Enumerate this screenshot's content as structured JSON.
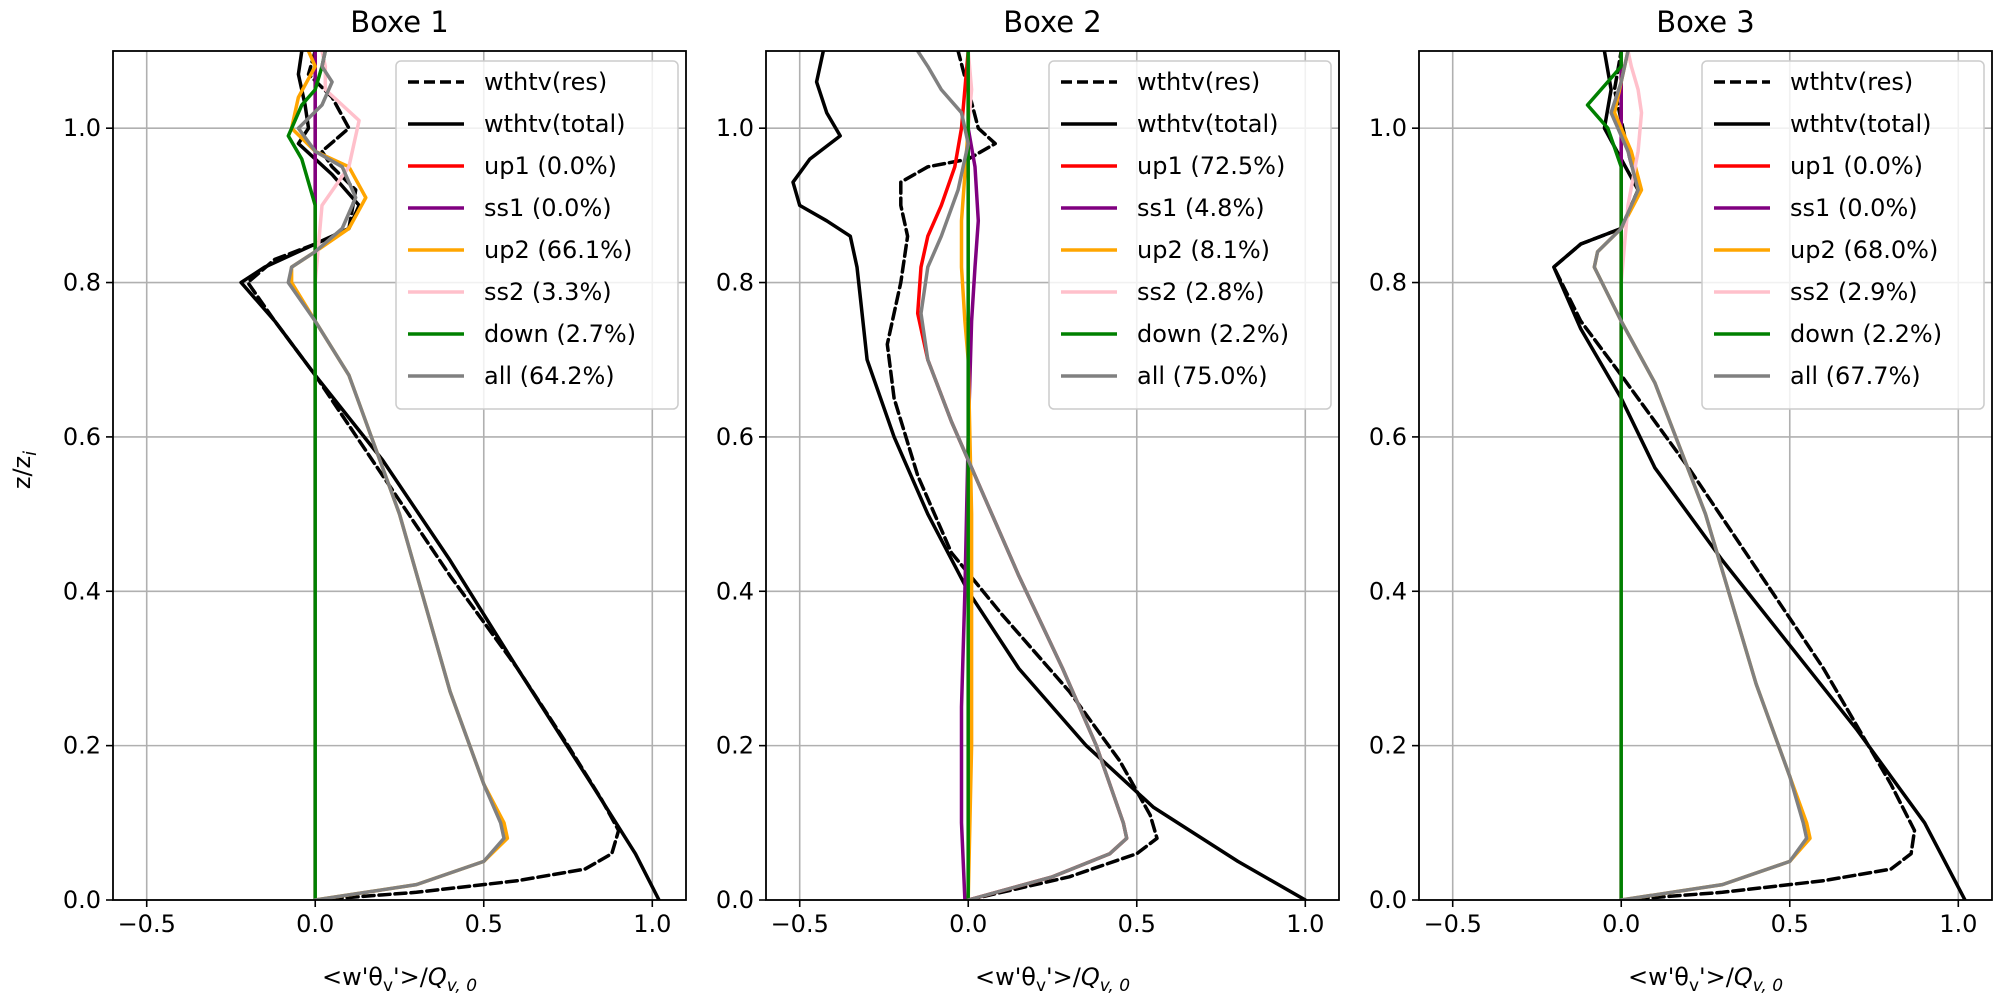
{
  "figure": {
    "ylabel": "z/z_i",
    "xlabel": "<w'θ_v'>/Q_{v,0}"
  },
  "colors": {
    "wthtv_res": "#000000",
    "wthtv_total": "#000000",
    "up1": "#ff0000",
    "ss1": "#800080",
    "up2": "#ffa500",
    "ss2": "#ffc0cb",
    "down": "#008000",
    "all": "#808080",
    "grid": "#b0b0b0"
  },
  "chart_data": [
    {
      "type": "line",
      "title": "Boxe 1",
      "xlabel": "<w'θ_v'>/Q_{v,0}",
      "ylabel": "z/z_i",
      "xlim": [
        -0.6,
        1.1
      ],
      "ylim": [
        0.0,
        1.1
      ],
      "xticks": [
        "−0.5",
        "0.0",
        "0.5",
        "1.0"
      ],
      "xtick_values": [
        -0.5,
        0.0,
        0.5,
        1.0
      ],
      "yticks": [
        "0.0",
        "0.2",
        "0.4",
        "0.6",
        "0.8",
        "1.0"
      ],
      "ytick_values": [
        0.0,
        0.2,
        0.4,
        0.6,
        0.8,
        1.0
      ],
      "grid": true,
      "legend": "upper right",
      "series": [
        {
          "name": "wthtv(res)",
          "key": "wthtv_res",
          "dash": true,
          "x": [
            0.0,
            0.3,
            0.6,
            0.8,
            0.88,
            0.9,
            0.85,
            0.75,
            0.6,
            0.4,
            0.2,
            0.0,
            -0.12,
            -0.2,
            -0.12,
            0.0,
            0.1,
            0.12,
            0.05,
            0.02,
            0.1,
            0.05,
            -0.02,
            0.0
          ],
          "y": [
            0.0,
            0.01,
            0.025,
            0.04,
            0.06,
            0.09,
            0.13,
            0.2,
            0.3,
            0.42,
            0.55,
            0.68,
            0.75,
            0.8,
            0.83,
            0.85,
            0.87,
            0.92,
            0.95,
            0.97,
            1.0,
            1.04,
            1.07,
            1.1
          ]
        },
        {
          "name": "wthtv(total)",
          "key": "wthtv_total",
          "dash": false,
          "x": [
            1.02,
            0.95,
            0.82,
            0.6,
            0.4,
            0.2,
            0.0,
            -0.12,
            -0.22,
            -0.15,
            0.0,
            0.1,
            0.13,
            0.05,
            -0.05,
            -0.02,
            -0.03,
            -0.05,
            -0.04
          ],
          "y": [
            0.0,
            0.06,
            0.15,
            0.3,
            0.44,
            0.57,
            0.68,
            0.75,
            0.8,
            0.82,
            0.85,
            0.87,
            0.9,
            0.94,
            0.98,
            1.0,
            1.03,
            1.07,
            1.1
          ]
        },
        {
          "name": "up1 (0.0%)",
          "key": "up1",
          "dash": false,
          "x": [
            0.0,
            0.0,
            0.0
          ],
          "y": [
            0.0,
            0.5,
            1.1
          ]
        },
        {
          "name": "ss1 (0.0%)",
          "key": "ss1",
          "dash": false,
          "x": [
            0.0,
            0.0,
            0.0,
            0.0,
            0.0,
            0.0
          ],
          "y": [
            0.0,
            0.8,
            0.9,
            1.0,
            1.05,
            1.1
          ]
        },
        {
          "name": "up2 (66.1%)",
          "key": "up2",
          "dash": false,
          "x": [
            0.0,
            0.3,
            0.5,
            0.57,
            0.56,
            0.5,
            0.4,
            0.25,
            0.1,
            0.0,
            -0.07,
            -0.07,
            0.0,
            0.1,
            0.15,
            0.1,
            0.0,
            -0.07,
            -0.05,
            0.0,
            -0.02
          ],
          "y": [
            0.0,
            0.02,
            0.05,
            0.08,
            0.1,
            0.15,
            0.27,
            0.5,
            0.68,
            0.75,
            0.8,
            0.82,
            0.84,
            0.87,
            0.91,
            0.95,
            0.97,
            1.0,
            1.04,
            1.08,
            1.1
          ]
        },
        {
          "name": "ss2 (3.3%)",
          "key": "ss2",
          "dash": false,
          "x": [
            0.0,
            0.0,
            0.02,
            0.1,
            0.13,
            0.08,
            0.03,
            0.03,
            0.02
          ],
          "y": [
            0.0,
            0.8,
            0.9,
            0.95,
            1.01,
            1.03,
            1.05,
            1.08,
            1.1
          ]
        },
        {
          "name": "down (2.7%)",
          "key": "down",
          "dash": false,
          "x": [
            0.0,
            0.0,
            0.0,
            -0.04,
            -0.08,
            -0.04,
            0.0,
            0.02,
            0.03
          ],
          "y": [
            0.0,
            0.5,
            0.9,
            0.96,
            0.99,
            1.03,
            1.05,
            1.08,
            1.1
          ]
        },
        {
          "name": "all (64.2%)",
          "key": "all",
          "dash": false,
          "x": [
            0.0,
            0.3,
            0.5,
            0.56,
            0.55,
            0.5,
            0.4,
            0.25,
            0.1,
            0.0,
            -0.08,
            -0.07,
            0.0,
            0.08,
            0.12,
            0.08,
            0.0,
            -0.05,
            0.02,
            0.05,
            0.02,
            0.03
          ],
          "y": [
            0.0,
            0.02,
            0.05,
            0.08,
            0.1,
            0.15,
            0.27,
            0.5,
            0.68,
            0.75,
            0.8,
            0.82,
            0.84,
            0.87,
            0.91,
            0.95,
            0.97,
            1.0,
            1.03,
            1.06,
            1.08,
            1.1
          ]
        }
      ]
    },
    {
      "type": "line",
      "title": "Boxe 2",
      "xlabel": "<w'θ_v'>/Q_{v,0}",
      "ylabel": "",
      "xlim": [
        -0.6,
        1.1
      ],
      "ylim": [
        0.0,
        1.1
      ],
      "xticks": [
        "−0.5",
        "0.0",
        "0.5",
        "1.0"
      ],
      "xtick_values": [
        -0.5,
        0.0,
        0.5,
        1.0
      ],
      "yticks": [
        "0.0",
        "0.2",
        "0.4",
        "0.6",
        "0.8",
        "1.0"
      ],
      "ytick_values": [
        0.0,
        0.2,
        0.4,
        0.6,
        0.8,
        1.0
      ],
      "grid": true,
      "legend": "upper right",
      "series": [
        {
          "name": "wthtv(res)",
          "key": "wthtv_res",
          "dash": true,
          "x": [
            0.0,
            0.3,
            0.5,
            0.56,
            0.54,
            0.45,
            0.3,
            0.1,
            -0.05,
            -0.15,
            -0.22,
            -0.24,
            -0.2,
            -0.18,
            -0.2,
            -0.2,
            -0.12,
            0.0,
            0.08,
            0.03,
            0.0,
            -0.03
          ],
          "y": [
            0.0,
            0.03,
            0.06,
            0.08,
            0.11,
            0.18,
            0.27,
            0.37,
            0.45,
            0.55,
            0.65,
            0.72,
            0.8,
            0.86,
            0.9,
            0.93,
            0.95,
            0.96,
            0.98,
            1.0,
            1.05,
            1.1
          ]
        },
        {
          "name": "wthtv(total)",
          "key": "wthtv_total",
          "dash": false,
          "x": [
            1.0,
            0.8,
            0.55,
            0.35,
            0.15,
            0.0,
            -0.12,
            -0.22,
            -0.3,
            -0.32,
            -0.33,
            -0.35,
            -0.42,
            -0.5,
            -0.52,
            -0.47,
            -0.38,
            -0.42,
            -0.45,
            -0.43
          ],
          "y": [
            0.0,
            0.05,
            0.12,
            0.2,
            0.3,
            0.4,
            0.5,
            0.6,
            0.7,
            0.78,
            0.82,
            0.86,
            0.88,
            0.9,
            0.93,
            0.96,
            0.99,
            1.02,
            1.06,
            1.1
          ]
        },
        {
          "name": "up1 (72.5%)",
          "key": "up1",
          "dash": false,
          "x": [
            0.0,
            0.25,
            0.42,
            0.47,
            0.46,
            0.38,
            0.28,
            0.15,
            0.05,
            -0.05,
            -0.12,
            -0.15,
            -0.14,
            -0.12,
            -0.08,
            -0.04,
            -0.02,
            0.0
          ],
          "y": [
            0.0,
            0.03,
            0.06,
            0.08,
            0.1,
            0.2,
            0.3,
            0.42,
            0.52,
            0.62,
            0.7,
            0.76,
            0.82,
            0.86,
            0.9,
            0.95,
            1.0,
            1.1
          ]
        },
        {
          "name": "ss1 (4.8%)",
          "key": "ss1",
          "dash": false,
          "x": [
            -0.01,
            -0.02,
            -0.02,
            -0.01,
            0.0,
            0.01,
            0.02,
            0.03,
            0.02,
            0.0,
            0.0
          ],
          "y": [
            0.0,
            0.1,
            0.25,
            0.4,
            0.6,
            0.75,
            0.82,
            0.88,
            0.95,
            1.0,
            1.1
          ]
        },
        {
          "name": "up2 (8.1%)",
          "key": "up2",
          "dash": false,
          "x": [
            0.0,
            0.01,
            0.01,
            0.0,
            -0.01,
            -0.02,
            -0.02,
            -0.01,
            0.0,
            0.0
          ],
          "y": [
            0.0,
            0.2,
            0.5,
            0.7,
            0.75,
            0.82,
            0.88,
            0.94,
            1.0,
            1.1
          ]
        },
        {
          "name": "ss2 (2.8%)",
          "key": "ss2",
          "dash": false,
          "x": [
            0.0,
            0.0,
            0.0,
            0.0,
            0.0,
            0.01,
            0.0
          ],
          "y": [
            0.0,
            0.3,
            0.6,
            0.9,
            1.0,
            1.05,
            1.1
          ]
        },
        {
          "name": "down (2.2%)",
          "key": "down",
          "dash": false,
          "x": [
            0.0,
            0.0,
            0.0,
            0.0,
            0.0
          ],
          "y": [
            0.0,
            0.3,
            0.6,
            0.9,
            1.1
          ]
        },
        {
          "name": "all (75.0%)",
          "key": "all",
          "dash": false,
          "x": [
            0.0,
            0.25,
            0.42,
            0.47,
            0.46,
            0.38,
            0.28,
            0.15,
            0.05,
            -0.05,
            -0.12,
            -0.14,
            -0.12,
            -0.08,
            -0.03,
            0.0,
            -0.02,
            -0.08,
            -0.12,
            -0.15
          ],
          "y": [
            0.0,
            0.03,
            0.06,
            0.08,
            0.1,
            0.2,
            0.3,
            0.42,
            0.52,
            0.62,
            0.7,
            0.76,
            0.82,
            0.86,
            0.92,
            0.98,
            1.02,
            1.05,
            1.08,
            1.1
          ]
        }
      ]
    },
    {
      "type": "line",
      "title": "Boxe 3",
      "xlabel": "<w'θ_v'>/Q_{v,0}",
      "ylabel": "",
      "xlim": [
        -0.6,
        1.1
      ],
      "ylim": [
        0.0,
        1.1
      ],
      "xticks": [
        "−0.5",
        "0.0",
        "0.5",
        "1.0"
      ],
      "xtick_values": [
        -0.5,
        0.0,
        0.5,
        1.0
      ],
      "yticks": [
        "0.0",
        "0.2",
        "0.4",
        "0.6",
        "0.8",
        "1.0"
      ],
      "ytick_values": [
        0.0,
        0.2,
        0.4,
        0.6,
        0.8,
        1.0
      ],
      "grid": true,
      "legend": "upper right",
      "series": [
        {
          "name": "wthtv(res)",
          "key": "wthtv_res",
          "dash": true,
          "x": [
            0.0,
            0.3,
            0.6,
            0.8,
            0.86,
            0.87,
            0.8,
            0.6,
            0.4,
            0.2,
            0.0,
            -0.12,
            -0.2,
            -0.12,
            0.0,
            0.05,
            0.02,
            -0.02,
            0.0
          ],
          "y": [
            0.0,
            0.01,
            0.025,
            0.04,
            0.06,
            0.09,
            0.15,
            0.3,
            0.43,
            0.56,
            0.68,
            0.75,
            0.82,
            0.85,
            0.87,
            0.92,
            0.97,
            1.05,
            1.1
          ]
        },
        {
          "name": "wthtv(total)",
          "key": "wthtv_total",
          "dash": false,
          "x": [
            1.02,
            0.9,
            0.7,
            0.5,
            0.3,
            0.1,
            0.0,
            -0.12,
            -0.2,
            -0.12,
            0.0,
            0.05,
            0.0,
            -0.05,
            -0.03,
            -0.05
          ],
          "y": [
            0.0,
            0.1,
            0.22,
            0.33,
            0.44,
            0.56,
            0.65,
            0.74,
            0.82,
            0.85,
            0.87,
            0.92,
            0.96,
            1.0,
            1.05,
            1.1
          ]
        },
        {
          "name": "up1 (0.0%)",
          "key": "up1",
          "dash": false,
          "x": [
            0.0,
            0.0,
            0.0
          ],
          "y": [
            0.0,
            0.5,
            1.1
          ]
        },
        {
          "name": "ss1 (0.0%)",
          "key": "ss1",
          "dash": false,
          "x": [
            0.0,
            0.0,
            0.0,
            0.0,
            0.0
          ],
          "y": [
            0.0,
            0.8,
            0.95,
            1.0,
            1.1
          ]
        },
        {
          "name": "up2 (68.0%)",
          "key": "up2",
          "dash": false,
          "x": [
            0.0,
            0.3,
            0.5,
            0.56,
            0.55,
            0.5,
            0.4,
            0.25,
            0.1,
            0.0,
            -0.08,
            -0.07,
            0.0,
            0.06,
            0.03,
            -0.02,
            0.0,
            0.02
          ],
          "y": [
            0.0,
            0.02,
            0.05,
            0.08,
            0.1,
            0.16,
            0.28,
            0.5,
            0.67,
            0.75,
            0.82,
            0.84,
            0.87,
            0.92,
            0.97,
            1.02,
            1.06,
            1.1
          ]
        },
        {
          "name": "ss2 (2.9%)",
          "key": "ss2",
          "dash": false,
          "x": [
            0.0,
            0.0,
            0.02,
            0.05,
            0.06,
            0.05,
            0.03,
            0.02
          ],
          "y": [
            0.0,
            0.8,
            0.9,
            0.97,
            1.02,
            1.05,
            1.08,
            1.1
          ]
        },
        {
          "name": "down (2.2%)",
          "key": "down",
          "dash": false,
          "x": [
            0.0,
            0.0,
            0.0,
            -0.04,
            -0.1,
            -0.04,
            0.0,
            0.0
          ],
          "y": [
            0.0,
            0.5,
            0.95,
            1.0,
            1.03,
            1.06,
            1.08,
            1.1
          ]
        },
        {
          "name": "all (67.7%)",
          "key": "all",
          "dash": false,
          "x": [
            0.0,
            0.3,
            0.5,
            0.55,
            0.54,
            0.5,
            0.4,
            0.25,
            0.1,
            0.0,
            -0.08,
            -0.07,
            0.0,
            0.05,
            0.02,
            -0.03,
            0.0,
            0.02
          ],
          "y": [
            0.0,
            0.02,
            0.05,
            0.08,
            0.1,
            0.16,
            0.28,
            0.5,
            0.67,
            0.75,
            0.82,
            0.84,
            0.87,
            0.92,
            0.97,
            1.02,
            1.06,
            1.1
          ]
        }
      ]
    }
  ]
}
